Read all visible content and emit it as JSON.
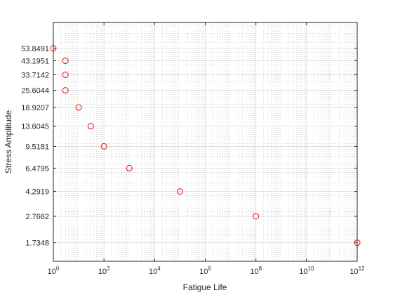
{
  "chart_data": {
    "type": "scatter",
    "title": "",
    "xlabel": "Fatigue Life",
    "ylabel": "Stress Amplitude",
    "xscale": "log",
    "yscale": "log",
    "xlim": [
      1,
      1000000000000
    ],
    "ylim": [
      1.25,
      85
    ],
    "grid": true,
    "minor_grid": true,
    "legend": "none",
    "marker": "circle-open",
    "marker_color": "#ff0000",
    "x_ticks": [
      {
        "value": 1,
        "base": "10",
        "exp": "0"
      },
      {
        "value": 100,
        "base": "10",
        "exp": "2"
      },
      {
        "value": 10000,
        "base": "10",
        "exp": "4"
      },
      {
        "value": 1000000,
        "base": "10",
        "exp": "6"
      },
      {
        "value": 100000000,
        "base": "10",
        "exp": "8"
      },
      {
        "value": 10000000000,
        "base": "10",
        "exp": "10"
      },
      {
        "value": 1000000000000,
        "base": "10",
        "exp": "12"
      }
    ],
    "y_ticks": [
      {
        "value": 1.7348,
        "label": "1.7348"
      },
      {
        "value": 2.7662,
        "label": "2.7662"
      },
      {
        "value": 4.2919,
        "label": "4.2919"
      },
      {
        "value": 6.4795,
        "label": "6.4795"
      },
      {
        "value": 9.5181,
        "label": "9.5181"
      },
      {
        "value": 13.6045,
        "label": "13.6045"
      },
      {
        "value": 18.9207,
        "label": "18.9207"
      },
      {
        "value": 25.6044,
        "label": "25.6044"
      },
      {
        "value": 33.7142,
        "label": "33.7142"
      },
      {
        "value": 43.1951,
        "label": "43.1951"
      },
      {
        "value": 53.8491,
        "label": "53.8491"
      }
    ],
    "points": [
      {
        "x": 1,
        "y": 53.8491
      },
      {
        "x": 3,
        "y": 43.1951
      },
      {
        "x": 3,
        "y": 33.7142
      },
      {
        "x": 3,
        "y": 25.6044
      },
      {
        "x": 10,
        "y": 18.9207
      },
      {
        "x": 30,
        "y": 13.6045
      },
      {
        "x": 100,
        "y": 9.5181
      },
      {
        "x": 1000,
        "y": 6.4795
      },
      {
        "x": 100000,
        "y": 4.2919
      },
      {
        "x": 100000000,
        "y": 2.7662
      },
      {
        "x": 1000000000000,
        "y": 1.7348
      }
    ]
  }
}
